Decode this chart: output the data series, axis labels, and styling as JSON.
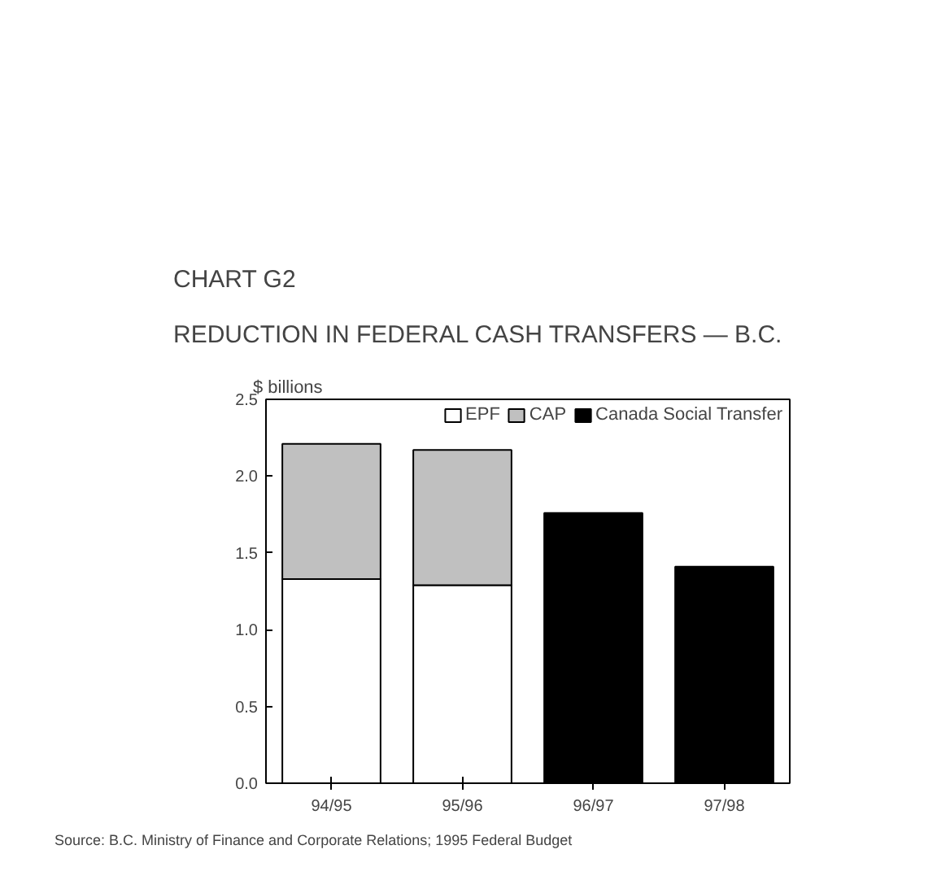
{
  "chart_data": {
    "type": "bar",
    "title": "CHART G2",
    "subtitle": "REDUCTION IN FEDERAL CASH TRANSFERS — B.C.",
    "ylabel": "$ billions",
    "categories": [
      "94/95",
      "95/96",
      "96/97",
      "97/98"
    ],
    "stacked": true,
    "series": [
      {
        "name": "EPF",
        "color": "#ffffff",
        "values": [
          1.33,
          1.29,
          null,
          null
        ]
      },
      {
        "name": "CAP",
        "color": "#c0c0c0",
        "values": [
          0.88,
          0.88,
          null,
          null
        ]
      },
      {
        "name": "Canada Social Transfer",
        "color": "#000000",
        "values": [
          null,
          null,
          1.76,
          1.41
        ]
      }
    ],
    "ylim": [
      0,
      2.5
    ],
    "yticks": [
      {
        "value": 0,
        "label": "0.0"
      },
      {
        "value": 0.5,
        "label": "0.5"
      },
      {
        "value": 1,
        "label": "1.0"
      },
      {
        "value": 1.5,
        "label": "1.5"
      },
      {
        "value": 2,
        "label": "2.0"
      },
      {
        "value": 2.5,
        "label": "2.5"
      }
    ],
    "grid": false,
    "legend": "top right",
    "annotations": [
      "Source:  B.C. Ministry of Finance and Corporate Relations; 1995 Federal Budget"
    ]
  }
}
